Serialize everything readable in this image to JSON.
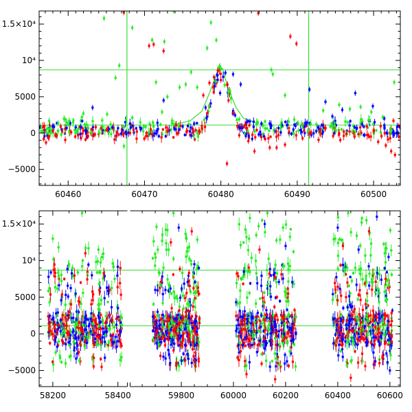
{
  "chart_data": [
    {
      "type": "scatter",
      "title": "",
      "xlabel": "",
      "ylabel": "",
      "xlim": [
        60456.2,
        60503.5
      ],
      "ylim": [
        -7200,
        16800
      ],
      "x_ticks": [
        60460,
        60470,
        60480,
        60490,
        60500
      ],
      "x_tick_labels": [
        "60460",
        "60470",
        "60480",
        "60490",
        "60500"
      ],
      "y_ticks": [
        15000,
        10000,
        5000,
        0,
        -5000
      ],
      "y_tick_labels": [
        "1.5×10⁴",
        "10⁴",
        "5000",
        "0",
        "−5000"
      ],
      "reference_lines": {
        "horizontal": [
          8700,
          1100
        ],
        "vertical": [
          60467.7,
          60491.5
        ],
        "color": "#33dd33"
      },
      "fit_curve": {
        "color": "#33dd33",
        "points": [
          [
            60474,
            1200
          ],
          [
            60476,
            1700
          ],
          [
            60477.5,
            3000
          ],
          [
            60478.5,
            5500
          ],
          [
            60479.5,
            8300
          ],
          [
            60480.2,
            8900
          ],
          [
            60481,
            6000
          ],
          [
            60482,
            3500
          ],
          [
            60483,
            2000
          ],
          [
            60485,
            1300
          ]
        ]
      },
      "grid": false,
      "series": [
        {
          "color": "#ff0000",
          "points": [
            [
              60456.8,
              -800
            ],
            [
              60457.1,
              -1300
            ],
            [
              60457.4,
              -600
            ],
            [
              60458.0,
              300
            ],
            [
              60458.5,
              -400
            ],
            [
              60459.2,
              200
            ],
            [
              60460.4,
              100
            ],
            [
              60461.3,
              -300
            ],
            [
              60462.6,
              -400
            ],
            [
              60463.5,
              -200
            ],
            [
              60465.1,
              600
            ],
            [
              60466.4,
              100
            ],
            [
              60467.2,
              -200
            ],
            [
              60468.1,
              0
            ],
            [
              60469.0,
              200
            ],
            [
              60470.2,
              -400
            ],
            [
              60470.6,
              12000
            ],
            [
              60471.2,
              12200
            ],
            [
              60472.5,
              11300
            ],
            [
              60473.1,
              400
            ],
            [
              60474.4,
              0
            ],
            [
              60475.6,
              300
            ],
            [
              60476.7,
              400
            ],
            [
              60477.7,
              5200
            ],
            [
              60478.5,
              6900
            ],
            [
              60479.1,
              7700
            ],
            [
              60479.6,
              8600
            ],
            [
              60480.0,
              7300
            ],
            [
              60481.0,
              4500
            ],
            [
              60481.7,
              2800
            ],
            [
              60482.4,
              -300
            ],
            [
              60483.6,
              -1100
            ],
            [
              60484.4,
              -2500
            ],
            [
              60484.9,
              16500
            ],
            [
              60485.8,
              -800
            ],
            [
              60486.4,
              -2000
            ],
            [
              60487.3,
              -2000
            ],
            [
              60488.4,
              -1600
            ],
            [
              60489.1,
              13300
            ],
            [
              60489.9,
              12300
            ],
            [
              60490.9,
              300
            ],
            [
              60491.8,
              100
            ],
            [
              60493.0,
              400
            ],
            [
              60494.7,
              -400
            ],
            [
              60496.1,
              200
            ],
            [
              60497.5,
              -500
            ],
            [
              60499.3,
              -300
            ],
            [
              60500.6,
              -1200
            ],
            [
              60501.6,
              -1700
            ],
            [
              60502.3,
              -2500
            ],
            [
              60502.8,
              -3000
            ],
            [
              60502.6,
              1700
            ],
            [
              60480.8,
              -4200
            ],
            [
              60467.3,
              16600
            ]
          ]
        },
        {
          "color": "#0000ff",
          "points": [
            [
              60458.0,
              1000
            ],
            [
              60459.8,
              700
            ],
            [
              60461.0,
              800
            ],
            [
              60462.4,
              300
            ],
            [
              60463.2,
              3500
            ],
            [
              60465.8,
              800
            ],
            [
              60467.1,
              400
            ],
            [
              60469.5,
              500
            ],
            [
              60471.6,
              300
            ],
            [
              60472.5,
              4500
            ],
            [
              60473.9,
              600
            ],
            [
              60475.0,
              900
            ],
            [
              60476.5,
              1300
            ],
            [
              60478.0,
              3500
            ],
            [
              60479.5,
              8000
            ],
            [
              60480.6,
              8300
            ],
            [
              60481.6,
              8100
            ],
            [
              60482.6,
              6700
            ],
            [
              60483.8,
              1600
            ],
            [
              60484.1,
              -800
            ],
            [
              60485.3,
              1300
            ],
            [
              60486.6,
              1000
            ],
            [
              60488.0,
              1100
            ],
            [
              60489.5,
              500
            ],
            [
              60491.2,
              1300
            ],
            [
              60492.7,
              800
            ],
            [
              60493.7,
              4300
            ],
            [
              60494.6,
              2300
            ],
            [
              60495.9,
              3200
            ],
            [
              60497.6,
              5500
            ],
            [
              60498.5,
              1200
            ],
            [
              60499.9,
              3700
            ],
            [
              60501.4,
              2000
            ],
            [
              60502.6,
              200
            ],
            [
              60491.6,
              6000
            ],
            [
              60479.9,
              5500
            ]
          ]
        },
        {
          "color": "#22ee22",
          "points": [
            [
              60458.7,
              300
            ],
            [
              60459.1,
              -200
            ],
            [
              60460.0,
              1200
            ],
            [
              60461.2,
              300
            ],
            [
              60462.0,
              2700
            ],
            [
              60464.7,
              15800
            ],
            [
              60465.1,
              2600
            ],
            [
              60466.2,
              7600
            ],
            [
              60466.7,
              9300
            ],
            [
              60467.3,
              800
            ],
            [
              60468.4,
              2100
            ],
            [
              60469.9,
              900
            ],
            [
              60471.0,
              12800
            ],
            [
              60471.5,
              7000
            ],
            [
              60472.3,
              2900
            ],
            [
              60473.0,
              5000
            ],
            [
              60473.8,
              16800
            ],
            [
              60474.6,
              6300
            ],
            [
              60475.4,
              6700
            ],
            [
              60476.1,
              8400
            ],
            [
              60476.9,
              6300
            ],
            [
              60478.2,
              11700
            ],
            [
              60478.7,
              15200
            ],
            [
              60479.4,
              12800
            ],
            [
              60480.0,
              8900
            ],
            [
              60480.5,
              6600
            ],
            [
              60481.2,
              5800
            ],
            [
              60482.4,
              1900
            ],
            [
              60485.5,
              1000
            ],
            [
              60486.8,
              8100
            ],
            [
              60487.8,
              1100
            ],
            [
              60488.4,
              5200
            ],
            [
              60490.1,
              1400
            ],
            [
              60491.4,
              200
            ],
            [
              60492.5,
              1200
            ],
            [
              60493.4,
              3100
            ],
            [
              60495.5,
              3900
            ],
            [
              60496.9,
              3300
            ],
            [
              60498.3,
              3600
            ],
            [
              60499.7,
              2900
            ],
            [
              60501.2,
              2200
            ],
            [
              60502.7,
              7000
            ],
            [
              60468.4,
              14500
            ],
            [
              60467.3,
              -1800
            ],
            [
              60486.6,
              8700
            ],
            [
              60464.5,
              900
            ],
            [
              60461.8,
              2200
            ],
            [
              60472.6,
              12600
            ]
          ]
        }
      ]
    },
    {
      "type": "scatter",
      "title": "",
      "xlabel": "",
      "ylabel": "",
      "ylim": [
        -7200,
        16800
      ],
      "x_axis_broken": true,
      "segments": [
        {
          "xlim": [
            58158,
            58428
          ],
          "x_ticks": [
            58200,
            58400
          ],
          "x_tick_labels": [
            "58200",
            "58400"
          ]
        },
        {
          "xlim": [
            59605,
            60640
          ],
          "x_ticks": [
            59800,
            60000,
            60200,
            60400,
            60600
          ],
          "x_tick_labels": [
            "59800",
            "60000",
            "60200",
            "60400",
            "60600"
          ]
        }
      ],
      "y_ticks": [
        15000,
        10000,
        5000,
        0,
        -5000
      ],
      "y_tick_labels": [
        "1.5×10⁴",
        "10⁴",
        "5000",
        "0",
        "−5000"
      ],
      "reference_lines": {
        "horizontal": [
          8700,
          1100
        ],
        "color": "#33dd33"
      },
      "grid": false,
      "observing_seasons": [
        {
          "x_start": 58185,
          "x_end": 58412,
          "peak": 12000
        },
        {
          "x_start": 59690,
          "x_end": 59870,
          "peak": 15000
        },
        {
          "x_start": 60010,
          "x_end": 60240,
          "peak": 16000
        },
        {
          "x_start": 60380,
          "x_end": 60610,
          "peak": 16000
        }
      ],
      "series": [
        {
          "color": "#ff0000",
          "points": [
            [
              58230,
              2500
            ],
            [
              58280,
              -2500
            ],
            [
              58300,
              11000
            ],
            [
              58350,
              -4500
            ],
            [
              58375,
              6000
            ],
            [
              59720,
              -3000
            ],
            [
              59760,
              12500
            ],
            [
              59840,
              14000
            ],
            [
              60050,
              -5500
            ],
            [
              60100,
              11500
            ],
            [
              60160,
              -6200
            ],
            [
              60210,
              5500
            ],
            [
              60420,
              12000
            ],
            [
              60450,
              -6000
            ],
            [
              60520,
              14000
            ],
            [
              60560,
              -4000
            ]
          ]
        },
        {
          "color": "#0000ff",
          "points": [
            [
              58215,
              1500
            ],
            [
              58270,
              5500
            ],
            [
              58320,
              8000
            ],
            [
              58400,
              3500
            ],
            [
              59700,
              6000
            ],
            [
              59790,
              14500
            ],
            [
              59850,
              9500
            ],
            [
              60040,
              8500
            ],
            [
              60120,
              15000
            ],
            [
              60200,
              12000
            ],
            [
              60400,
              14500
            ],
            [
              60480,
              11500
            ],
            [
              60550,
              16000
            ],
            [
              60595,
              10500
            ],
            [
              60600,
              -5000
            ]
          ]
        },
        {
          "color": "#22ee22",
          "points": [
            [
              58200,
              13000
            ],
            [
              58250,
              9500
            ],
            [
              58290,
              16500
            ],
            [
              58340,
              11500
            ],
            [
              58390,
              7500
            ],
            [
              59710,
              11500
            ],
            [
              59770,
              16500
            ],
            [
              59820,
              13000
            ],
            [
              60060,
              13000
            ],
            [
              60130,
              16500
            ],
            [
              60190,
              14500
            ],
            [
              60390,
              13000
            ],
            [
              60440,
              16500
            ],
            [
              60510,
              15500
            ],
            [
              60580,
              11000
            ]
          ]
        }
      ]
    }
  ]
}
